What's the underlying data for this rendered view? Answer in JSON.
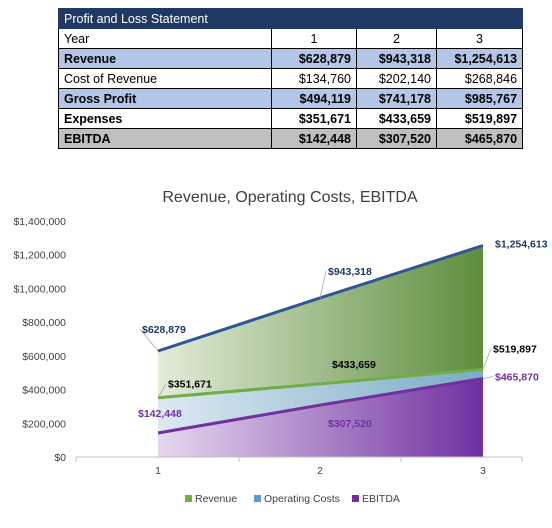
{
  "table": {
    "title": "Profit and Loss Statement",
    "header": {
      "label": "Year",
      "years": [
        "1",
        "2",
        "3"
      ]
    },
    "rows": [
      {
        "label": "Revenue",
        "values": [
          "$628,879",
          "$943,318",
          "$1,254,613"
        ]
      },
      {
        "label": "Cost of Revenue",
        "values": [
          "$134,760",
          "$202,140",
          "$268,846"
        ]
      },
      {
        "label": "Gross Profit",
        "values": [
          "$494,119",
          "$741,178",
          "$985,767"
        ]
      },
      {
        "label": "Expenses",
        "values": [
          "$351,671",
          "$433,659",
          "$519,897"
        ]
      },
      {
        "label": "EBITDA",
        "values": [
          "$142,448",
          "$307,520",
          "$465,870"
        ]
      }
    ]
  },
  "chart_data": {
    "type": "area",
    "title": "Revenue, Operating Costs, EBITDA",
    "categories": [
      "1",
      "2",
      "3"
    ],
    "ylim": [
      0,
      1400000
    ],
    "yticks": [
      0,
      200000,
      400000,
      600000,
      800000,
      1000000,
      1200000,
      1400000
    ],
    "ytick_labels": [
      "$0",
      "$200,000",
      "$400,000",
      "$600,000",
      "$800,000",
      "$1,000,000",
      "$1,200,000",
      "$1,400,000"
    ],
    "legend_position": "bottom",
    "series": [
      {
        "name": "Revenue",
        "values": [
          628879,
          943318,
          1254613
        ],
        "labels": [
          "$628,879",
          "$943,318",
          "$1,254,613"
        ],
        "color": "#548235",
        "line": "#2f5597",
        "label_color": "#1f3864"
      },
      {
        "name": "Operating Costs",
        "values": [
          351671,
          433659,
          519897
        ],
        "labels": [
          "$351,671",
          "$433,659",
          "$519,897"
        ],
        "color": "#5b9bd5",
        "line": "#70ad47",
        "label_color": "#000000"
      },
      {
        "name": "EBITDA",
        "values": [
          142448,
          307520,
          465870
        ],
        "labels": [
          "$142,448",
          "$307,520",
          "$465,870"
        ],
        "color": "#7030a0",
        "line": "#7030a0",
        "label_color": "#7030a0"
      }
    ]
  }
}
